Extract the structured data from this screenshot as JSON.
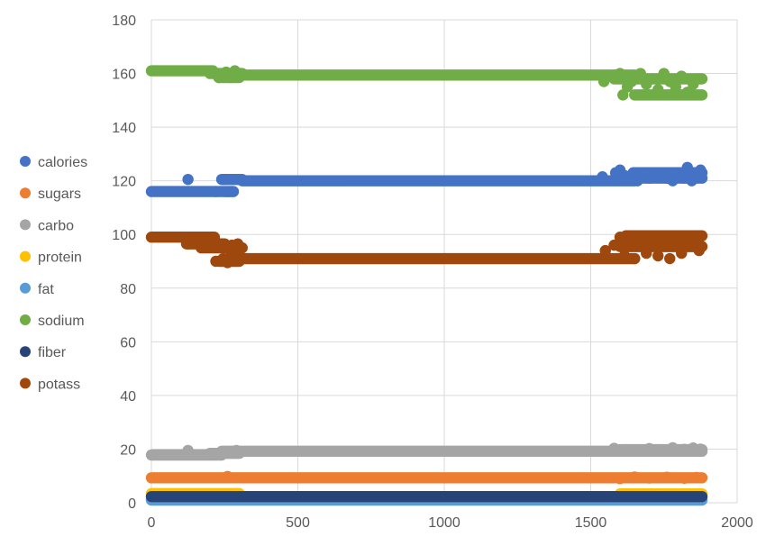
{
  "chart_data": {
    "type": "scatter",
    "xlim": [
      0,
      2000
    ],
    "ylim": [
      0,
      180
    ],
    "x_ticks": [
      0,
      500,
      1000,
      1500,
      2000
    ],
    "y_ticks": [
      0,
      20,
      40,
      60,
      80,
      100,
      120,
      140,
      160,
      180
    ],
    "grid": true,
    "legend_position": "left",
    "series": [
      {
        "name": "calories",
        "color": "#4472C4",
        "segments": [
          {
            "x": [
              0,
              220
            ],
            "y": 116
          },
          {
            "x": [
              220,
              280
            ],
            "y": 116
          },
          {
            "x": [
              240,
              310
            ],
            "y": 120.5
          },
          {
            "x": [
              310,
              1650
            ],
            "y": 120
          },
          {
            "x": [
              1600,
              1880
            ],
            "y": 121
          },
          {
            "x": [
              1650,
              1880
            ],
            "y": 123
          }
        ],
        "points": [
          [
            125,
            120.5
          ],
          [
            255,
            116
          ],
          [
            265,
            116
          ],
          [
            275,
            116
          ],
          [
            245,
            120.5
          ],
          [
            300,
            120.5
          ],
          [
            1540,
            121.5
          ],
          [
            1585,
            123
          ],
          [
            1600,
            124
          ],
          [
            1615,
            122
          ],
          [
            1630,
            121
          ],
          [
            1645,
            123
          ],
          [
            1660,
            120
          ],
          [
            1680,
            122
          ],
          [
            1700,
            121
          ],
          [
            1720,
            123
          ],
          [
            1740,
            122
          ],
          [
            1760,
            121
          ],
          [
            1780,
            120
          ],
          [
            1800,
            123
          ],
          [
            1820,
            121
          ],
          [
            1830,
            125
          ],
          [
            1845,
            120
          ],
          [
            1860,
            122
          ],
          [
            1875,
            124
          ]
        ]
      },
      {
        "name": "sugars",
        "color": "#ED7D31",
        "segments": [
          {
            "x": [
              0,
              1880
            ],
            "y": 9.3
          }
        ],
        "points": [
          [
            260,
            9.8
          ],
          [
            1600,
            9
          ],
          [
            1650,
            9.6
          ],
          [
            1700,
            9.2
          ],
          [
            1760,
            9.5
          ],
          [
            1820,
            9.1
          ],
          [
            1860,
            9.4
          ]
        ]
      },
      {
        "name": "carbo",
        "color": "#A5A5A5",
        "segments": [
          {
            "x": [
              0,
              240
            ],
            "y": 17.8
          },
          {
            "x": [
              200,
              300
            ],
            "y": 18.4
          },
          {
            "x": [
              240,
              1880
            ],
            "y": 19.2
          },
          {
            "x": [
              1600,
              1880
            ],
            "y": 19.8
          }
        ],
        "points": [
          [
            125,
            19.5
          ],
          [
            250,
            18.5
          ],
          [
            270,
            19
          ],
          [
            290,
            19.5
          ],
          [
            1580,
            20.3
          ],
          [
            1620,
            19.8
          ],
          [
            1660,
            19.6
          ],
          [
            1700,
            20.2
          ],
          [
            1740,
            19.8
          ],
          [
            1780,
            20.5
          ],
          [
            1820,
            19.9
          ],
          [
            1850,
            20.4
          ],
          [
            1875,
            20
          ]
        ]
      },
      {
        "name": "protein",
        "color": "#FFC000",
        "segments": [
          {
            "x": [
              0,
              300
            ],
            "y": 3.4
          },
          {
            "x": [
              1600,
              1880
            ],
            "y": 3.3
          }
        ],
        "points": []
      },
      {
        "name": "fat",
        "color": "#5B9BD5",
        "segments": [
          {
            "x": [
              0,
              1880
            ],
            "y": 1.0
          }
        ],
        "points": []
      },
      {
        "name": "sodium",
        "color": "#70AD47",
        "segments": [
          {
            "x": [
              0,
              210
            ],
            "y": 161
          },
          {
            "x": [
              200,
              310
            ],
            "y": 160
          },
          {
            "x": [
              230,
              300
            ],
            "y": 158.5
          },
          {
            "x": [
              300,
              1650
            ],
            "y": 159.4
          },
          {
            "x": [
              1580,
              1880
            ],
            "y": 158
          },
          {
            "x": [
              1650,
              1880
            ],
            "y": 152
          }
        ],
        "points": [
          [
            230,
            158.5
          ],
          [
            255,
            160.5
          ],
          [
            270,
            158.5
          ],
          [
            285,
            161
          ],
          [
            300,
            160
          ],
          [
            1545,
            157
          ],
          [
            1585,
            159.5
          ],
          [
            1600,
            160
          ],
          [
            1610,
            152
          ],
          [
            1625,
            155
          ],
          [
            1640,
            157
          ],
          [
            1655,
            159
          ],
          [
            1670,
            160
          ],
          [
            1690,
            156
          ],
          [
            1710,
            158
          ],
          [
            1730,
            154
          ],
          [
            1750,
            160
          ],
          [
            1770,
            157
          ],
          [
            1790,
            155
          ],
          [
            1810,
            159
          ],
          [
            1830,
            153
          ],
          [
            1850,
            156
          ],
          [
            1870,
            158
          ]
        ]
      },
      {
        "name": "fiber",
        "color": "#264478",
        "segments": [
          {
            "x": [
              0,
              1880
            ],
            "y": 2.3
          }
        ],
        "points": []
      },
      {
        "name": "potass",
        "color": "#9E480E",
        "segments": [
          {
            "x": [
              0,
              215
            ],
            "y": 99
          },
          {
            "x": [
              120,
              250
            ],
            "y": 96.5
          },
          {
            "x": [
              170,
              310
            ],
            "y": 95
          },
          {
            "x": [
              230,
              300
            ],
            "y": 90
          },
          {
            "x": [
              260,
              1650
            ],
            "y": 91
          },
          {
            "x": [
              1600,
              1880
            ],
            "y": 95.5
          },
          {
            "x": [
              1620,
              1880
            ],
            "y": 99.5
          }
        ],
        "points": [
          [
            125,
            96.5
          ],
          [
            220,
            90
          ],
          [
            245,
            91
          ],
          [
            260,
            89.5
          ],
          [
            275,
            96
          ],
          [
            295,
            96.5
          ],
          [
            1550,
            94
          ],
          [
            1580,
            96
          ],
          [
            1600,
            99
          ],
          [
            1615,
            92
          ],
          [
            1630,
            97
          ],
          [
            1650,
            91
          ],
          [
            1670,
            99
          ],
          [
            1690,
            93
          ],
          [
            1710,
            97
          ],
          [
            1730,
            92
          ],
          [
            1750,
            96
          ],
          [
            1770,
            91
          ],
          [
            1790,
            98
          ],
          [
            1810,
            93
          ],
          [
            1830,
            96
          ],
          [
            1850,
            99
          ],
          [
            1870,
            94
          ]
        ]
      }
    ]
  }
}
